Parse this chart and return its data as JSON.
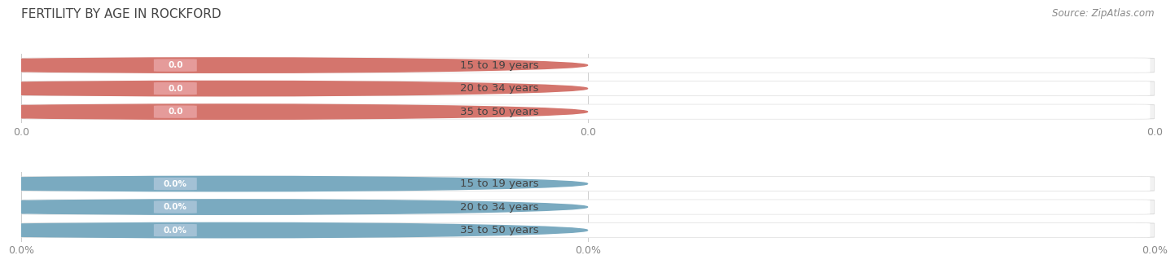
{
  "title": "FERTILITY BY AGE IN ROCKFORD",
  "source": "Source: ZipAtlas.com",
  "top_chart": {
    "categories": [
      "15 to 19 years",
      "20 to 34 years",
      "35 to 50 years"
    ],
    "values": [
      0.0,
      0.0,
      0.0
    ],
    "bar_color": "#E8A0A0",
    "dot_color": "#D4756D",
    "show_pct": false,
    "tick_labels": [
      "0.0",
      "0.0",
      "0.0"
    ]
  },
  "bottom_chart": {
    "categories": [
      "15 to 19 years",
      "20 to 34 years",
      "35 to 50 years"
    ],
    "values": [
      0.0,
      0.0,
      0.0
    ],
    "bar_color": "#A8C4D8",
    "dot_color": "#7AAAC0",
    "show_pct": true,
    "tick_labels": [
      "0.0%",
      "0.0%",
      "0.0%"
    ]
  },
  "bar_bg_color": "#EFEFEF",
  "bar_white_color": "#FFFFFF",
  "background_color": "#FFFFFF",
  "title_fontsize": 11,
  "label_fontsize": 9.5,
  "tick_fontsize": 9,
  "source_fontsize": 8.5,
  "figsize": [
    14.06,
    3.3
  ],
  "dpi": 100
}
